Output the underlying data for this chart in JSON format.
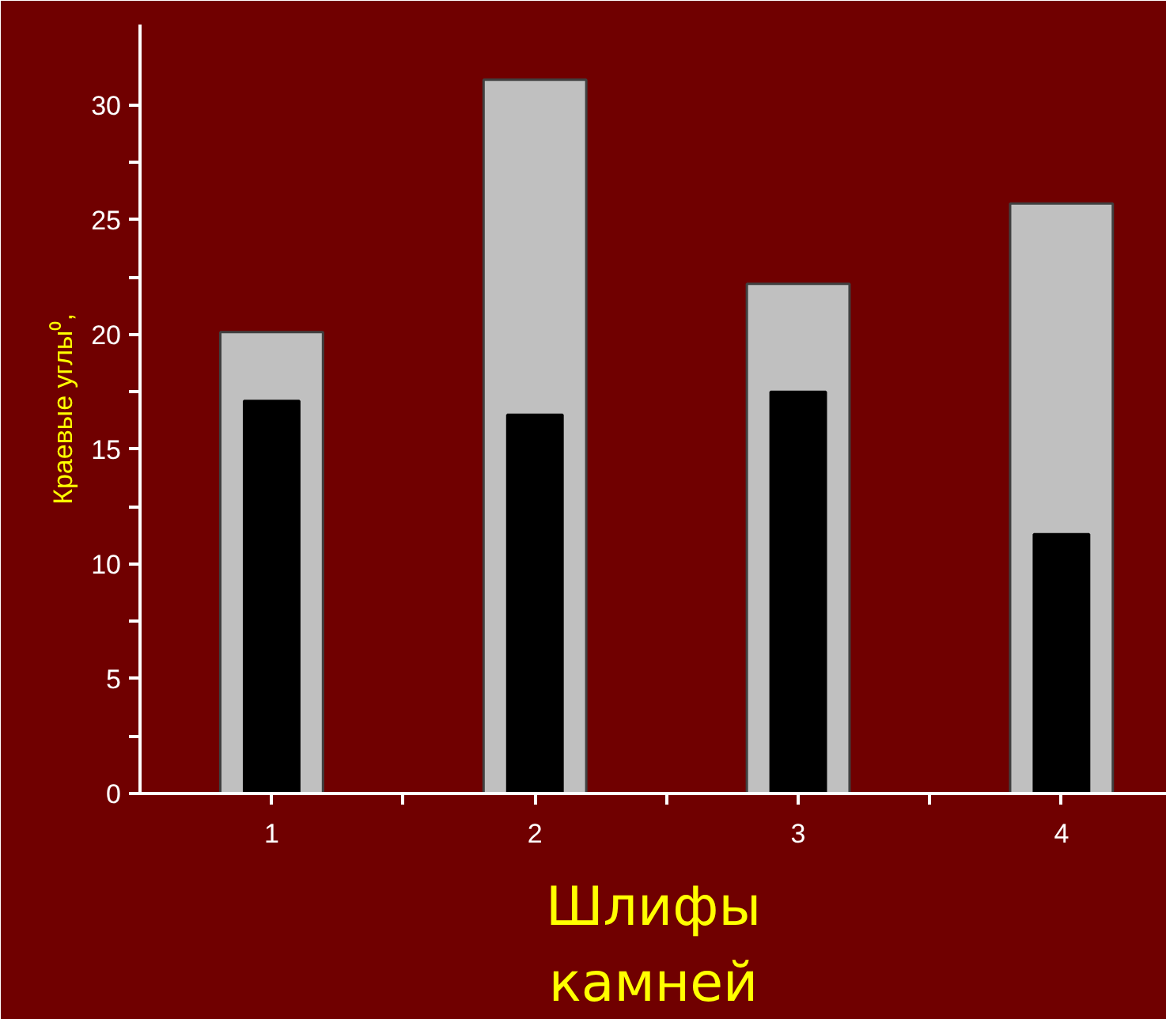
{
  "chart_data": {
    "type": "bar",
    "xlabel": "Шлифы камней",
    "ylabel": "Краевые углы⁰,",
    "categories": [
      "1",
      "2",
      "3",
      "4"
    ],
    "series": [
      {
        "color": "#c0c0c0",
        "values": [
          20.1,
          31.1,
          22.2,
          25.7
        ]
      },
      {
        "color": "#000000",
        "values": [
          17.1,
          16.5,
          17.5,
          11.3
        ]
      }
    ],
    "ylim": [
      0,
      33.5
    ],
    "yticks": [
      0,
      {
        "value": 2.5,
        "label": null
      },
      5,
      {
        "value": 7.5,
        "label": null
      },
      10,
      {
        "value": 12.5,
        "label": null
      },
      15,
      {
        "value": 17.5,
        "label": null
      },
      20,
      {
        "value": 22.5,
        "label": null
      },
      25,
      {
        "value": 27.5,
        "label": null
      },
      30
    ],
    "grid": false
  }
}
